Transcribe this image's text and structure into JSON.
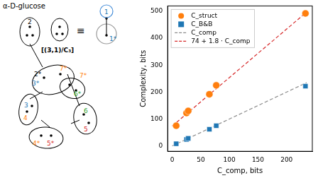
{
  "chart_data": {
    "type": "scatter",
    "x_label": "C_comp, bits",
    "y_label": "Complexity, bits",
    "xlim": [
      -8,
      245
    ],
    "xticks": [
      0,
      50,
      100,
      150,
      200
    ],
    "ylim": [
      -20,
      520
    ],
    "yticks": [
      0,
      100,
      200,
      300,
      400,
      500
    ],
    "grid": false,
    "legend": "upper left",
    "series": [
      {
        "name": "C_struct",
        "color": "#ff7f0e",
        "marker": "circle",
        "x": [
          7,
          25,
          28,
          65,
          77,
          233
        ],
        "values": [
          75,
          122,
          130,
          192,
          225,
          492
        ]
      },
      {
        "name": "C_B&B",
        "color": "#1f77b4",
        "marker": "square",
        "x": [
          7,
          25,
          28,
          65,
          77,
          233
        ],
        "values": [
          8,
          24,
          28,
          62,
          75,
          222
        ]
      },
      {
        "name": "C_comp",
        "color": "#8c8c8c",
        "type": "line",
        "line_style": "dashed",
        "x": [
          0,
          235
        ],
        "values": [
          0,
          235
        ]
      },
      {
        "name": "74 + 1.8 · C_comp",
        "color": "#d62728",
        "type": "line",
        "line_style": "dashed",
        "x": [
          0,
          235
        ],
        "values": [
          74,
          497
        ]
      }
    ]
  },
  "diagram": {
    "title": "α-D-glucose",
    "motif": "[(3,1)/C₃]",
    "equivalence": "≡",
    "labels": [
      "1",
      "1*",
      "2",
      "2*",
      "3*",
      "7*",
      "6*",
      "3",
      "4",
      "4*",
      "5*",
      "6",
      "5",
      "7*"
    ]
  }
}
